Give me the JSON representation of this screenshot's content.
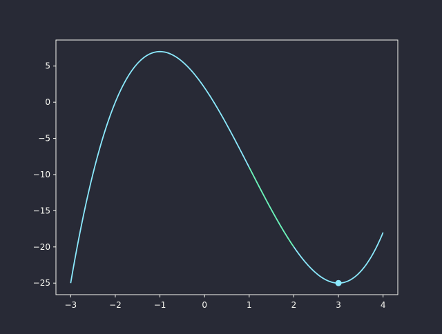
{
  "colors": {
    "background": "#282a36",
    "axes_edge": "#f8f8f2",
    "tick_label": "#f8f8f2",
    "curve": "#8be9fd",
    "highlight_segment": "#50fa7b",
    "marker": "#8be9fd"
  },
  "chart_data": {
    "type": "line",
    "title": "",
    "xlabel": "",
    "ylabel": "",
    "xlim": [
      -3.33,
      4.33
    ],
    "ylim": [
      -26.6,
      8.6
    ],
    "grid": false,
    "legend": "none",
    "x_ticks": [
      -3,
      -2,
      -1,
      0,
      1,
      2,
      3,
      4
    ],
    "x_tick_labels": [
      "−3",
      "−2",
      "−1",
      "0",
      "1",
      "2",
      "3",
      "4"
    ],
    "y_ticks": [
      5,
      0,
      -5,
      -10,
      -15,
      -20,
      -25
    ],
    "y_tick_labels": [
      "5",
      "0",
      "−5",
      "−10",
      "−15",
      "−20",
      "−25"
    ],
    "series": [
      {
        "x": [
          -3.0,
          -2.5,
          -2.0,
          -1.5,
          -1.0,
          -0.5,
          0.0,
          0.5,
          1.0,
          1.5,
          2.0,
          2.5,
          3.0,
          3.5,
          4.0
        ],
        "y": [
          -25.0,
          -7.6,
          0.0,
          4.6,
          7.0,
          4.4,
          2.0,
          -3.0,
          -9.0,
          -15.1,
          -20.0,
          -24.1,
          -25.0,
          -22.9,
          -18.0
        ]
      },
      {
        "x": [
          1.0,
          1.25,
          1.5,
          1.75,
          2.0
        ],
        "y": [
          -9.0,
          -12.3,
          -15.1,
          -17.8,
          -20.0
        ]
      }
    ],
    "points": [
      {
        "x": 3.0,
        "y": -25.0
      }
    ]
  }
}
